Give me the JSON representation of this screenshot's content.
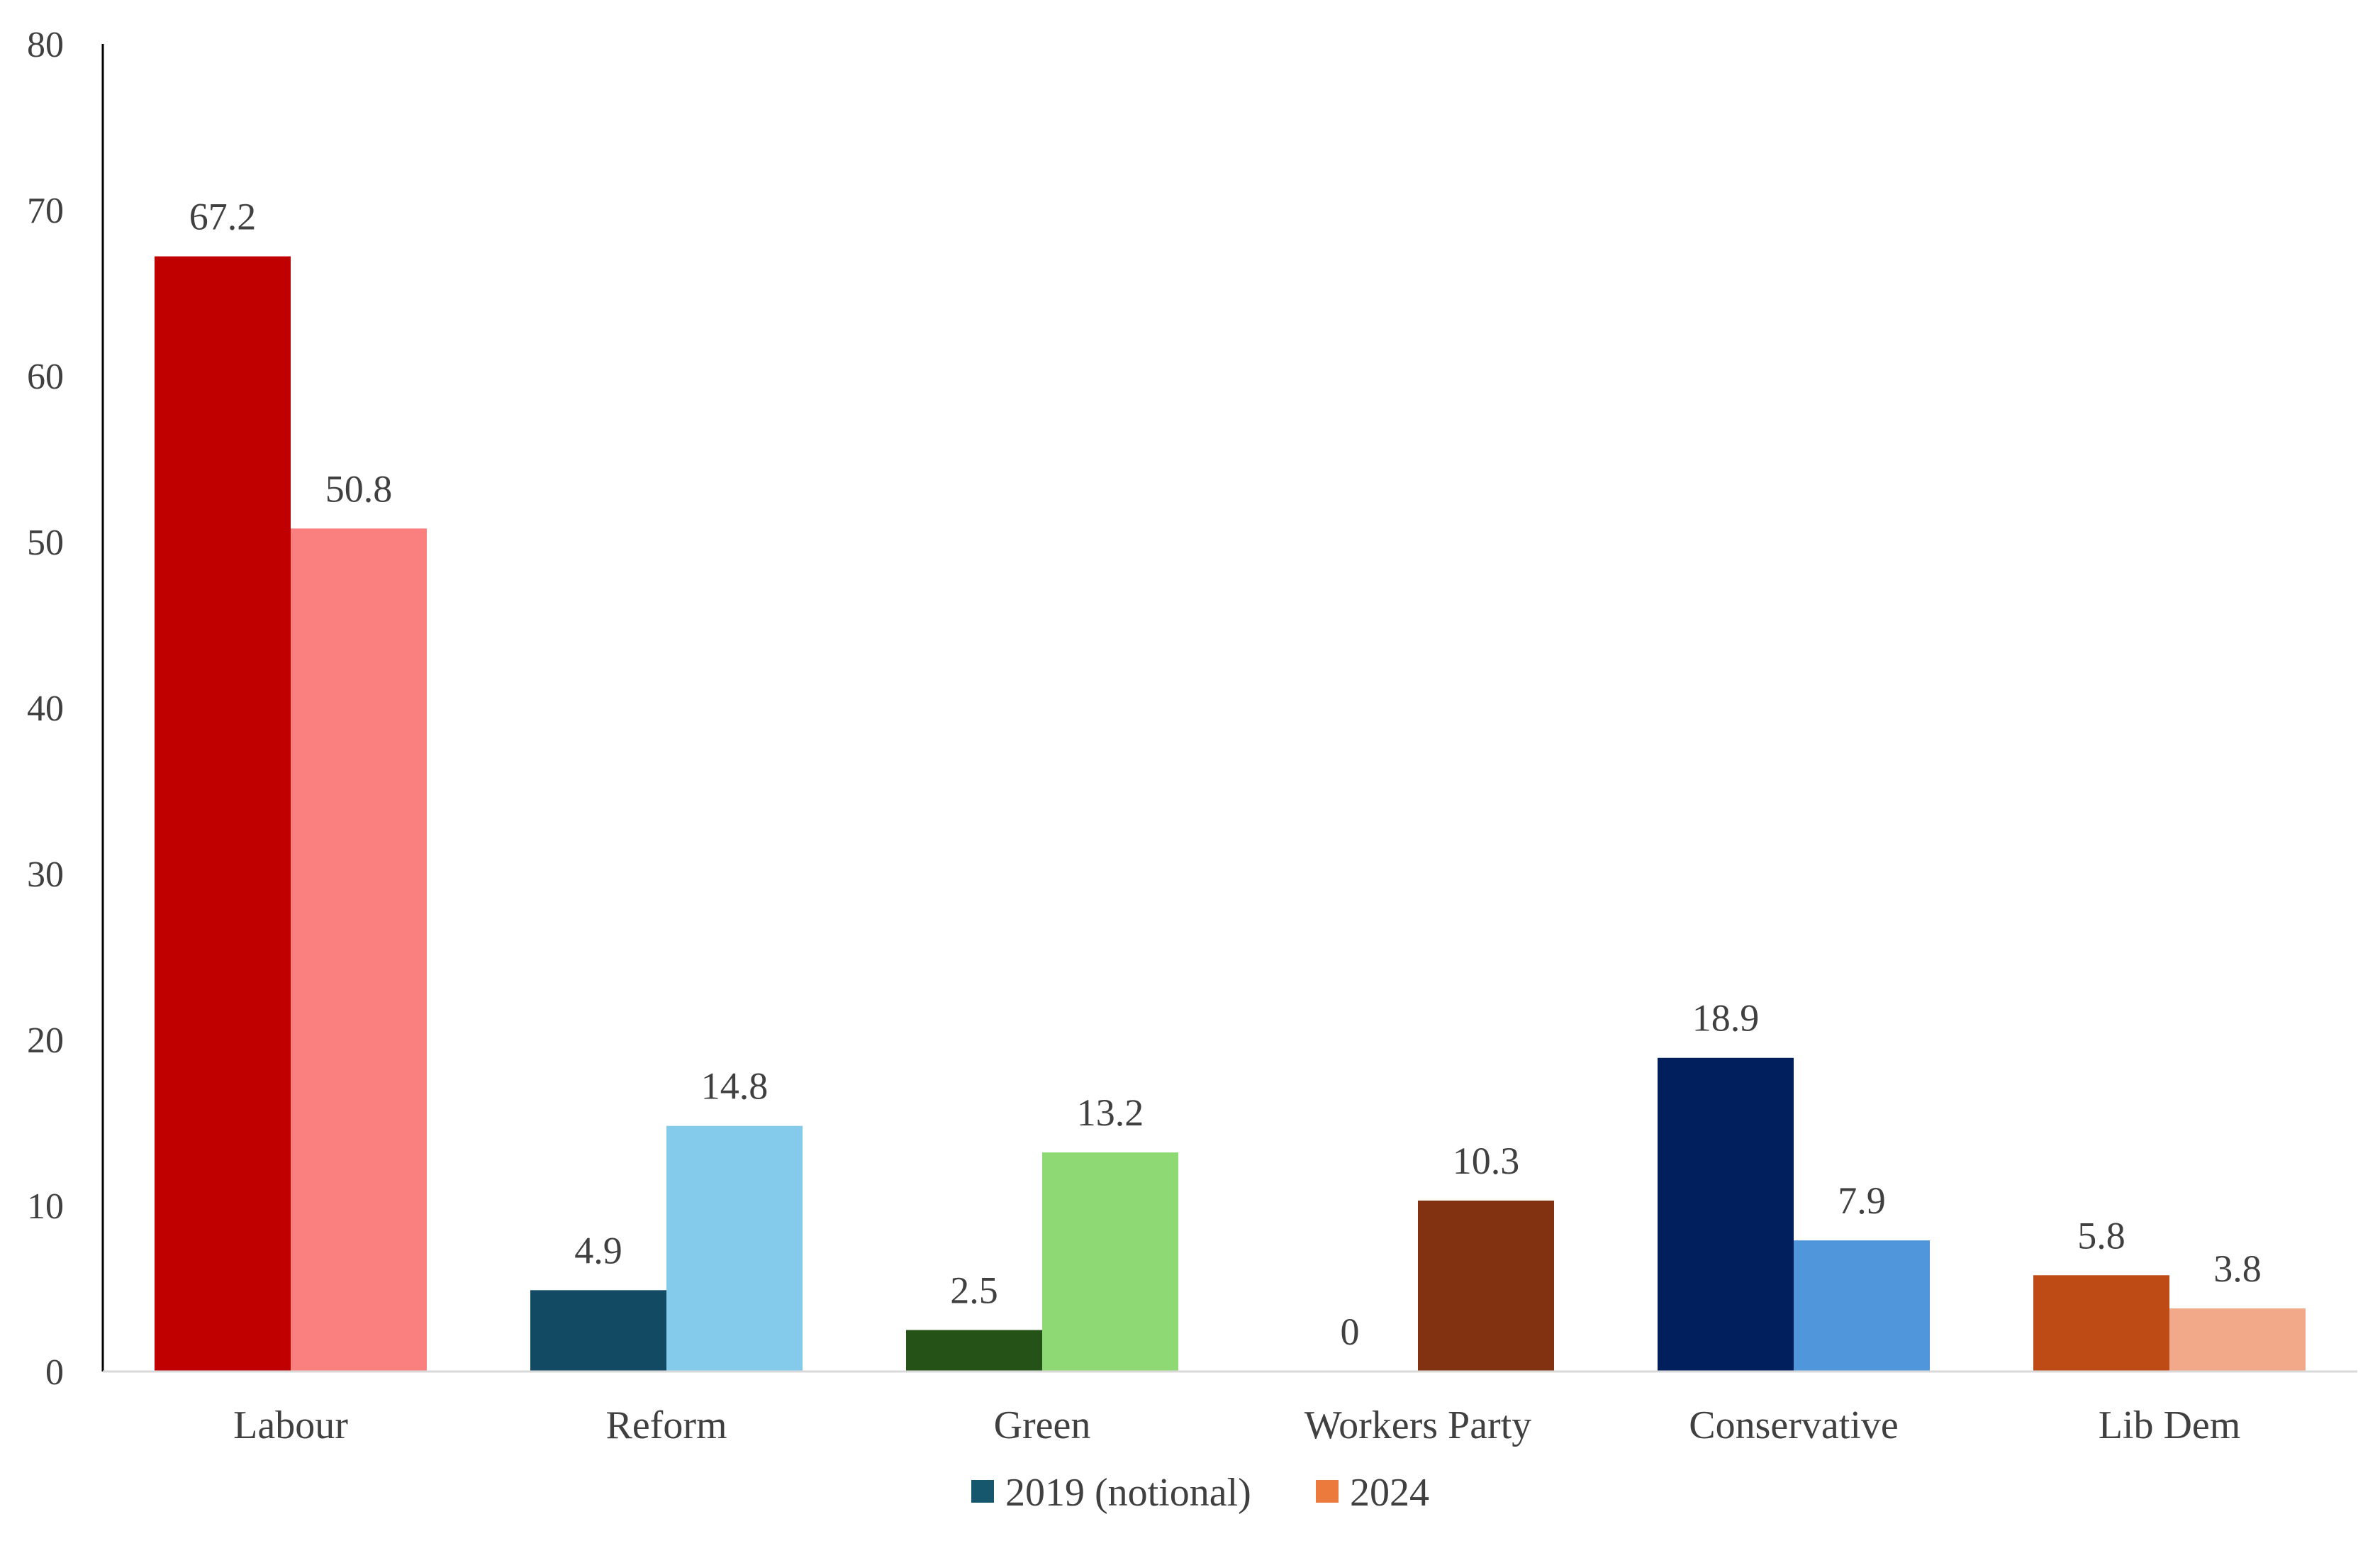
{
  "chart_data": {
    "type": "bar",
    "categories": [
      "Labour",
      "Reform",
      "Green",
      "Workers Party",
      "Conservative",
      "Lib Dem"
    ],
    "series": [
      {
        "name": "2019 (notional)",
        "values": [
          67.2,
          4.9,
          2.5,
          0,
          18.9,
          5.8
        ]
      },
      {
        "name": "2024",
        "values": [
          50.8,
          14.8,
          13.2,
          10.3,
          7.9,
          3.8
        ]
      }
    ],
    "data_labels": [
      [
        "67.2",
        "4.9",
        "2.5",
        "0",
        "18.9",
        "5.8"
      ],
      [
        "50.8",
        "14.8",
        "13.2",
        "10.3",
        "7.9",
        "3.8"
      ]
    ],
    "bar_colors": [
      [
        "#C00000",
        "#134A63",
        "#245217",
        null,
        "#001F5C",
        "#BE4B16"
      ],
      [
        "#FA7F7F",
        "#84CAEA",
        "#8FD975",
        "#833211",
        "#5096DA",
        "#F2A989"
      ]
    ],
    "legend_colors": [
      "#17576E",
      "#EB7A3C"
    ],
    "ylim": [
      0,
      80
    ],
    "yticks": [
      0,
      10,
      20,
      30,
      40,
      50,
      60,
      70,
      80
    ],
    "title": "",
    "xlabel": "",
    "ylabel": "",
    "grid": false,
    "legend_position": "bottom"
  }
}
